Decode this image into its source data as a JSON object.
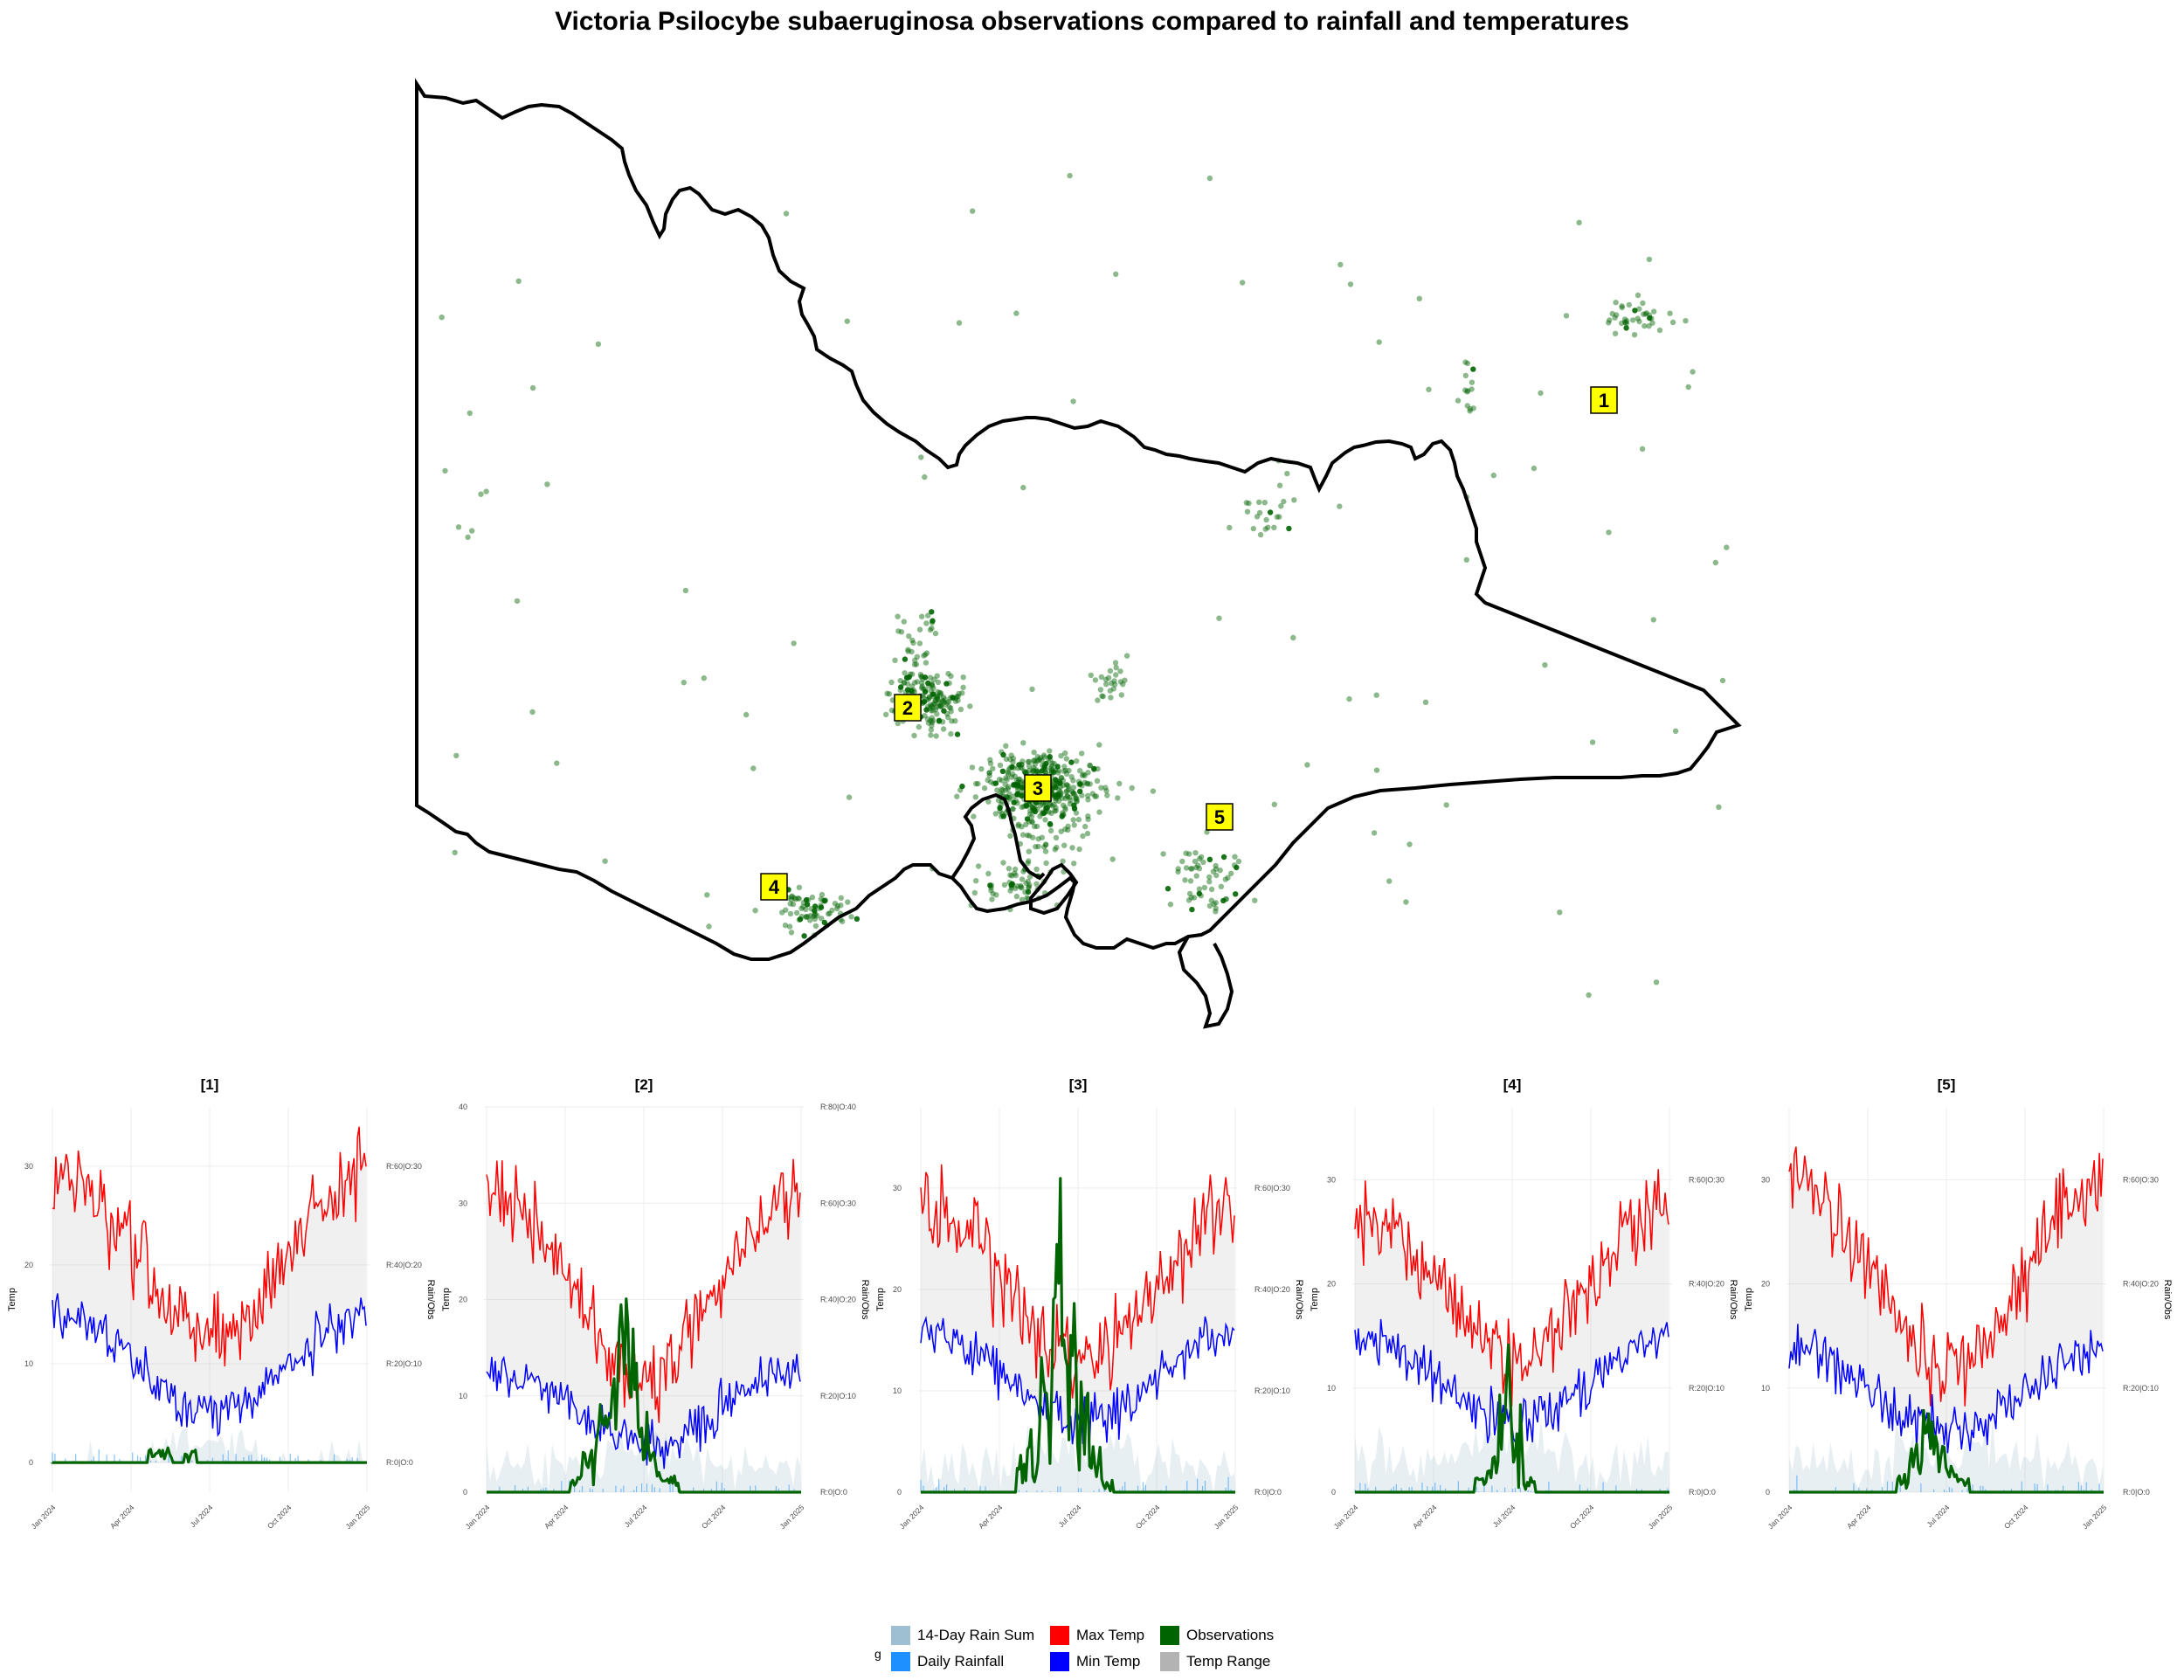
{
  "chart_data": [
    {
      "type": "scatter",
      "title": "Victoria Psilocybe subaeruginosa observations compared to rainfall and temperatures",
      "regions": [
        {
          "label": "1"
        },
        {
          "label": "2"
        },
        {
          "label": "3"
        },
        {
          "label": "4"
        },
        {
          "label": "5"
        }
      ],
      "colors": {
        "outline": "#000000",
        "observation": "#006400",
        "label_fill": "#ffff00"
      }
    },
    {
      "type": "line",
      "title": "[1]",
      "x_ticks": [
        "Jan 2024",
        "Apr 2024",
        "Jul 2024",
        "Oct 2024",
        "Jan 2025"
      ],
      "ylabel": "Temp",
      "y_ticks": [
        0,
        10,
        20,
        30
      ],
      "ylim": [
        -3,
        36
      ],
      "secondary_ylabel": "Rain/Obs",
      "secondary_ticks": [
        "R:0|O:0",
        "R:20|O:10",
        "R:40|O:20",
        "R:60|O:30"
      ],
      "series": [
        {
          "name": "Max Temp",
          "start": 25,
          "summer": 29,
          "winter": 13,
          "end": 28
        },
        {
          "name": "Min Temp",
          "start": 13,
          "summer": 15,
          "winter": 5,
          "end": 13
        },
        {
          "name": "Observations",
          "values": [
            0,
            0,
            0,
            0,
            0,
            0,
            0,
            0,
            1,
            1,
            0,
            1,
            0,
            0,
            0,
            0,
            0,
            0,
            0,
            0,
            0,
            0,
            0,
            0,
            0,
            0
          ]
        }
      ]
    },
    {
      "type": "line",
      "title": "[2]",
      "x_ticks": [
        "Jan 2024",
        "Apr 2024",
        "Jul 2024",
        "Oct 2024",
        "Jan 2025"
      ],
      "ylabel": "Temp",
      "y_ticks": [
        0,
        10,
        20,
        30,
        40
      ],
      "ylim": [
        0,
        40
      ],
      "secondary_ylabel": "Rain/Obs",
      "secondary_ticks": [
        "R:0|O:0",
        "R:20|O:10",
        "R:40|O:20",
        "R:60|O:30",
        "R:80|O:40"
      ],
      "series": [
        {
          "name": "Max Temp",
          "start": 27,
          "summer": 31,
          "winter": 12,
          "end": 30
        },
        {
          "name": "Min Temp",
          "start": 12,
          "summer": 13,
          "winter": 5,
          "end": 12
        },
        {
          "name": "Observations",
          "values": [
            0,
            0,
            0,
            0,
            0,
            0,
            0,
            1,
            3,
            6,
            10,
            14,
            9,
            5,
            2,
            1,
            0,
            0,
            0,
            0,
            0,
            0,
            0,
            0,
            0,
            0
          ]
        }
      ]
    },
    {
      "type": "line",
      "title": "[3]",
      "x_ticks": [
        "Jan 2024",
        "Apr 2024",
        "Jul 2024",
        "Oct 2024",
        "Jan 2025"
      ],
      "ylabel": "Temp",
      "y_ticks": [
        0,
        10,
        20,
        30
      ],
      "ylim": [
        0,
        38
      ],
      "secondary_ylabel": "Rain/Obs",
      "secondary_ticks": [
        "R:0|O:0",
        "R:20|O:10",
        "R:40|O:20",
        "R:60|O:30"
      ],
      "series": [
        {
          "name": "Max Temp",
          "start": 25,
          "summer": 28,
          "winter": 13,
          "end": 27
        },
        {
          "name": "Min Temp",
          "start": 15,
          "summer": 16,
          "winter": 7,
          "end": 14
        },
        {
          "name": "Observations",
          "values": [
            0,
            0,
            0,
            0,
            0,
            0,
            0,
            0,
            2,
            5,
            9,
            16,
            12,
            7,
            3,
            1,
            0,
            0,
            0,
            0,
            0,
            0,
            0,
            0,
            0,
            0
          ]
        }
      ]
    },
    {
      "type": "line",
      "title": "[4]",
      "x_ticks": [
        "Jan 2024",
        "Apr 2024",
        "Jul 2024",
        "Oct 2024",
        "Jan 2025"
      ],
      "ylabel": "Temp",
      "y_ticks": [
        0,
        10,
        20,
        30
      ],
      "ylim": [
        0,
        37
      ],
      "secondary_ylabel": "Rain/Obs",
      "secondary_ticks": [
        "R:0|O:0",
        "R:20|O:10",
        "R:40|O:20",
        "R:60|O:30"
      ],
      "series": [
        {
          "name": "Max Temp",
          "start": 24,
          "summer": 27,
          "winter": 13,
          "end": 25
        },
        {
          "name": "Min Temp",
          "start": 14,
          "summer": 15,
          "winter": 7,
          "end": 13
        },
        {
          "name": "Observations",
          "values": [
            0,
            0,
            0,
            0,
            0,
            0,
            0,
            0,
            0,
            0,
            1,
            3,
            8,
            4,
            1,
            0,
            0,
            0,
            0,
            0,
            0,
            0,
            0,
            0,
            0,
            0
          ]
        }
      ]
    },
    {
      "type": "line",
      "title": "[5]",
      "x_ticks": [
        "Jan 2024",
        "Apr 2024",
        "Jul 2024",
        "Oct 2024",
        "Jan 2025"
      ],
      "ylabel": "Temp",
      "y_ticks": [
        0,
        10,
        20,
        30
      ],
      "ylim": [
        0,
        37
      ],
      "secondary_ylabel": "Rain/Obs",
      "secondary_ticks": [
        "R:0|O:0",
        "R:20|O:10",
        "R:40|O:20",
        "R:60|O:30"
      ],
      "series": [
        {
          "name": "Max Temp",
          "start": 27,
          "summer": 30,
          "winter": 12,
          "end": 28
        },
        {
          "name": "Min Temp",
          "start": 14,
          "summer": 14,
          "winter": 6,
          "end": 12
        },
        {
          "name": "Observations",
          "values": [
            0,
            0,
            0,
            0,
            0,
            0,
            0,
            0,
            0,
            1,
            3,
            5,
            4,
            2,
            1,
            0,
            0,
            0,
            0,
            0,
            0,
            0,
            0,
            0,
            0,
            0
          ]
        }
      ]
    }
  ],
  "legend": {
    "title": "g",
    "items": [
      {
        "label": "14-Day Rain Sum",
        "color": "#9ebfd1"
      },
      {
        "label": "Daily Rainfall",
        "color": "#1e90ff"
      },
      {
        "label": "Max Temp",
        "color": "#ff0000"
      },
      {
        "label": "Min Temp",
        "color": "#0000ff"
      },
      {
        "label": "Observations",
        "color": "#006400"
      },
      {
        "label": "Temp Range",
        "color": "#b3b3b3"
      }
    ]
  }
}
